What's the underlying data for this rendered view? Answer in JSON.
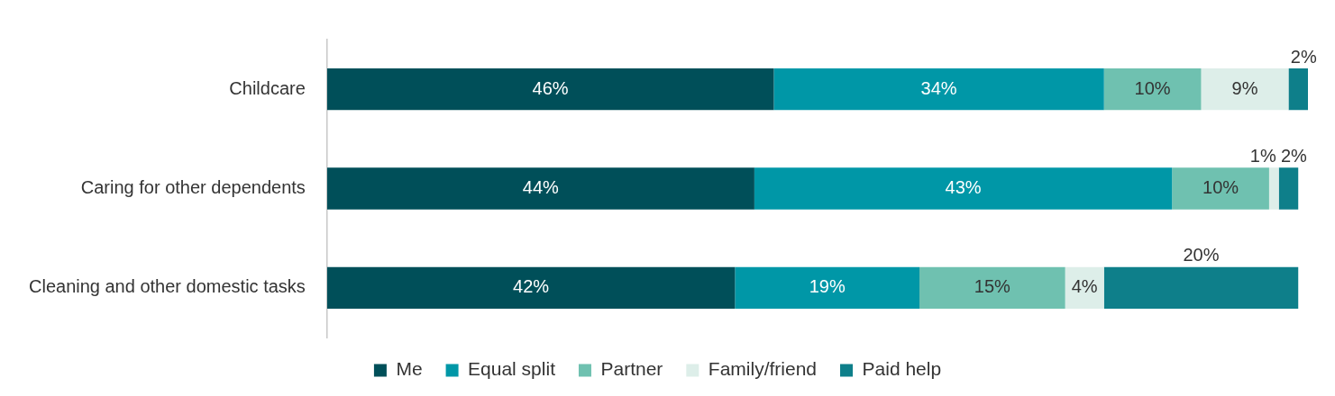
{
  "chart_data": {
    "type": "bar",
    "orientation": "horizontal",
    "stacked": true,
    "categories": [
      "Childcare",
      "Caring for other dependents",
      "Cleaning and other domestic tasks"
    ],
    "series": [
      {
        "name": "Me",
        "color": "#004f59",
        "values": [
          46,
          44,
          42
        ],
        "value_labels": [
          "46%",
          "44%",
          "42%"
        ]
      },
      {
        "name": "Equal split",
        "color": "#0097a7",
        "values": [
          34,
          43,
          19
        ],
        "value_labels": [
          "34%",
          "43%",
          "19%"
        ]
      },
      {
        "name": "Partner",
        "color": "#6fc1b0",
        "values": [
          10,
          10,
          15
        ],
        "value_labels": [
          "10%",
          "10%",
          "15%"
        ]
      },
      {
        "name": "Family/friend",
        "color": "#ddeee9",
        "values": [
          9,
          1,
          4
        ],
        "value_labels": [
          "9%",
          "1%",
          "4%"
        ]
      },
      {
        "name": "Paid help",
        "color": "#0e7f8a",
        "values": [
          2,
          2,
          20
        ],
        "value_labels": [
          "2%",
          "2%",
          "20%"
        ]
      }
    ],
    "legend": "bottom"
  }
}
